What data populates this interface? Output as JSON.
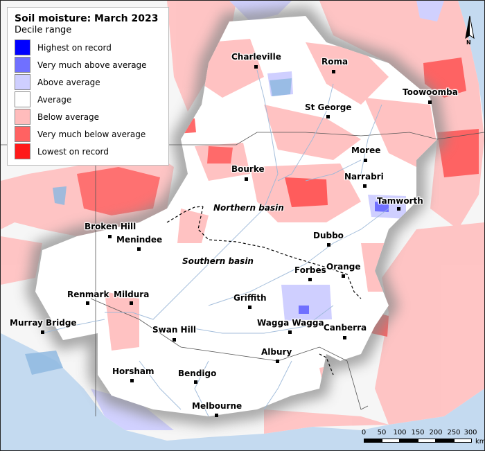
{
  "legend": {
    "title": "Soil moisture: March 2023",
    "subtitle": "Decile range",
    "items": [
      {
        "label": "Highest on record",
        "color": "#0000ff"
      },
      {
        "label": "Very much above average",
        "color": "#7070ff"
      },
      {
        "label": "Above average",
        "color": "#cfcfff"
      },
      {
        "label": "Average",
        "color": "#ffffff"
      },
      {
        "label": "Below average",
        "color": "#ffbcbc"
      },
      {
        "label": "Very much below average",
        "color": "#ff6262"
      },
      {
        "label": "Lowest on record",
        "color": "#ff1a1a"
      }
    ]
  },
  "towns": {
    "charleville": "Charleville",
    "roma": "Roma",
    "toowoomba": "Toowoomba",
    "st_george": "St George",
    "moree": "Moree",
    "bourke": "Bourke",
    "narrabri": "Narrabri",
    "tamworth": "Tamworth",
    "broken_hill": "Broken Hill",
    "menindee": "Menindee",
    "dubbo": "Dubbo",
    "orange": "Orange",
    "forbes": "Forbes",
    "renmark": "Renmark",
    "mildura": "Mildura",
    "griffith": "Griffith",
    "murray_bridge": "Murray Bridge",
    "wagga_wagga": "Wagga Wagga",
    "canberra": "Canberra",
    "swan_hill": "Swan Hill",
    "albury": "Albury",
    "horsham": "Horsham",
    "bendigo": "Bendigo",
    "melbourne": "Melbourne"
  },
  "basins": {
    "northern": "Northern basin",
    "southern": "Southern basin"
  },
  "scale": {
    "ticks": [
      "0",
      "50",
      "100",
      "150",
      "200",
      "250",
      "300"
    ],
    "unit": "km"
  },
  "north_arrow": "N",
  "colors": {
    "ocean": "#c4daf0",
    "river": "#9bb8d8"
  }
}
